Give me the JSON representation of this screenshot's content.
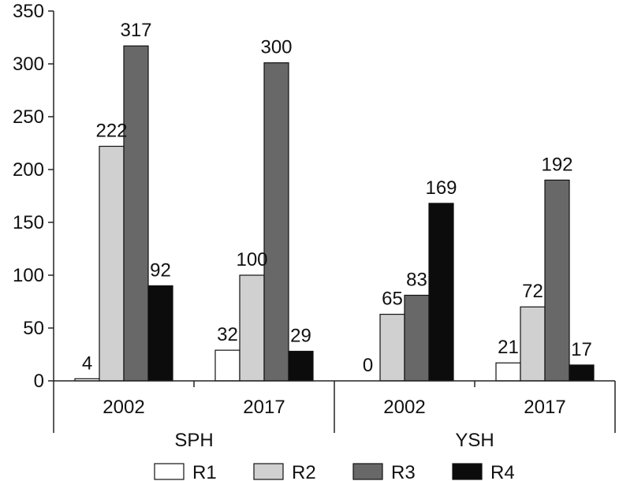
{
  "chart_data": {
    "type": "bar",
    "title": "",
    "xlabel": "",
    "ylabel": "",
    "ylim": [
      0,
      350
    ],
    "yticks": [
      0,
      50,
      100,
      150,
      200,
      250,
      300,
      350
    ],
    "groups": [
      {
        "name": "SPH",
        "categories": [
          "2002",
          "2017"
        ]
      },
      {
        "name": "YSH",
        "categories": [
          "2002",
          "2017"
        ]
      }
    ],
    "categories": [
      "SPH 2002",
      "SPH 2017",
      "YSH 2002",
      "YSH 2017"
    ],
    "category_tick_labels": [
      "2002",
      "2017",
      "2002",
      "2017"
    ],
    "series": [
      {
        "name": "R1",
        "color": "#ffffff",
        "values": [
          4,
          32,
          0,
          21
        ]
      },
      {
        "name": "R2",
        "color": "#d0d0d0",
        "values": [
          222,
          100,
          65,
          72
        ]
      },
      {
        "name": "R3",
        "color": "#686868",
        "values": [
          317,
          300,
          83,
          192
        ]
      },
      {
        "name": "R4",
        "color": "#0c0c0c",
        "values": [
          92,
          29,
          169,
          17
        ]
      }
    ],
    "bar_heights_drawn": [
      [
        2,
        29,
        0,
        17
      ],
      [
        222,
        100,
        63,
        70
      ],
      [
        317,
        301,
        81,
        190
      ],
      [
        90,
        28,
        168,
        15
      ]
    ],
    "grid": false,
    "legend_position": "bottom"
  }
}
